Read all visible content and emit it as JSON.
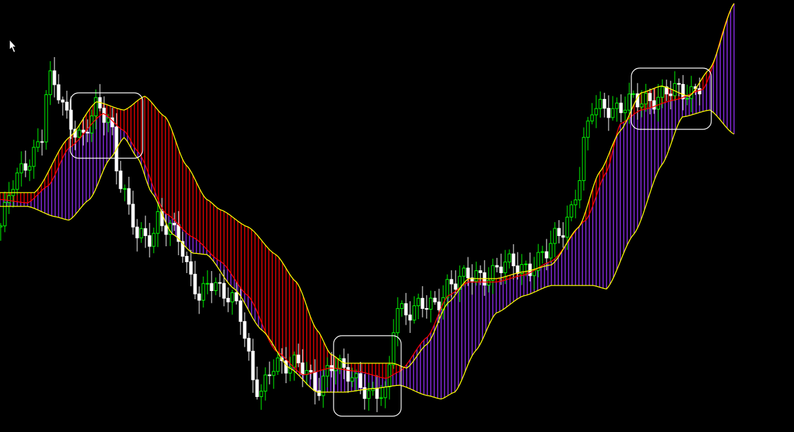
{
  "chart_data": {
    "type": "candlestick",
    "title": "",
    "xlabel": "",
    "ylabel": "",
    "xlim": [
      0,
      230
    ],
    "ylim": [
      0,
      62.8
    ],
    "grid": false,
    "legend": "none",
    "colors": {
      "background": "#000000",
      "bull_candle": "#00ff00",
      "bear_candle": "#ffffff",
      "band_lines": "#ffff00",
      "mid_line": "#ff0000",
      "fill_upper": "#ff0000",
      "fill_lower": "#9b30ff",
      "highlight_boxes": "#ffffff"
    },
    "close": [
      [
        0,
        29.8
      ],
      [
        4,
        35.8
      ],
      [
        8,
        39.8
      ],
      [
        12,
        42.8
      ],
      [
        14,
        50.8
      ],
      [
        16,
        49.8
      ],
      [
        20,
        45.8
      ],
      [
        24,
        42.8
      ],
      [
        28,
        46.8
      ],
      [
        32,
        45.8
      ],
      [
        34,
        38.8
      ],
      [
        36,
        34.8
      ],
      [
        38,
        30.8
      ],
      [
        40,
        27.8
      ],
      [
        44,
        28.8
      ],
      [
        46,
        31.8
      ],
      [
        48,
        29.8
      ],
      [
        52,
        27.8
      ],
      [
        54,
        23.8
      ],
      [
        56,
        22.8
      ],
      [
        58,
        19.8
      ],
      [
        60,
        21.8
      ],
      [
        64,
        19.8
      ],
      [
        68,
        19.8
      ],
      [
        70,
        17.8
      ],
      [
        72,
        10.8
      ],
      [
        74,
        5.8
      ],
      [
        76,
        4.8
      ],
      [
        78,
        8.8
      ],
      [
        80,
        10.8
      ],
      [
        84,
        9.8
      ],
      [
        88,
        8.8
      ],
      [
        92,
        6.8
      ],
      [
        96,
        9.8
      ],
      [
        100,
        8.3
      ],
      [
        104,
        7.8
      ],
      [
        108,
        5.3
      ],
      [
        112,
        4.8
      ],
      [
        115,
        18.8
      ],
      [
        118,
        17.8
      ],
      [
        122,
        17.8
      ],
      [
        126,
        18.3
      ],
      [
        130,
        21.8
      ],
      [
        134,
        21.8
      ],
      [
        138,
        22.8
      ],
      [
        142,
        23.3
      ],
      [
        146,
        23.8
      ],
      [
        150,
        24.3
      ],
      [
        154,
        24.3
      ],
      [
        158,
        25.3
      ],
      [
        162,
        28.8
      ],
      [
        166,
        32.8
      ],
      [
        168,
        36.8
      ],
      [
        170,
        42.8
      ],
      [
        172,
        46.8
      ],
      [
        176,
        47.8
      ],
      [
        180,
        46.8
      ],
      [
        184,
        47.8
      ],
      [
        188,
        48.8
      ],
      [
        192,
        48.8
      ],
      [
        196,
        49.3
      ],
      [
        200,
        49.8
      ],
      [
        204,
        50.8
      ]
    ],
    "upper_band": [
      [
        0,
        34.8
      ],
      [
        10,
        34.8
      ],
      [
        20,
        42.8
      ],
      [
        28,
        48.0
      ],
      [
        36,
        46.8
      ],
      [
        42,
        48.8
      ],
      [
        48,
        45.8
      ],
      [
        54,
        38.8
      ],
      [
        60,
        33.8
      ],
      [
        64,
        32.3
      ],
      [
        72,
        29.8
      ],
      [
        80,
        25.8
      ],
      [
        86,
        21.8
      ],
      [
        92,
        14.8
      ],
      [
        96,
        11.3
      ],
      [
        100,
        10.0
      ],
      [
        108,
        10.0
      ],
      [
        114,
        10.0
      ],
      [
        118,
        9.3
      ],
      [
        124,
        12.8
      ],
      [
        130,
        18.8
      ],
      [
        136,
        22.3
      ],
      [
        144,
        22.3
      ],
      [
        152,
        23.3
      ],
      [
        160,
        24.3
      ],
      [
        168,
        29.8
      ],
      [
        174,
        37.8
      ],
      [
        180,
        43.8
      ],
      [
        186,
        49.3
      ],
      [
        192,
        50.3
      ],
      [
        200,
        48.8
      ],
      [
        206,
        52.8
      ],
      [
        213,
        62.3
      ]
    ],
    "mid_line": [
      [
        0,
        33.8
      ],
      [
        8,
        33.3
      ],
      [
        14,
        35.8
      ],
      [
        20,
        41.3
      ],
      [
        30,
        46.3
      ],
      [
        36,
        43.8
      ],
      [
        40,
        40.8
      ],
      [
        48,
        31.8
      ],
      [
        56,
        28.3
      ],
      [
        64,
        24.8
      ],
      [
        72,
        19.8
      ],
      [
        80,
        11.8
      ],
      [
        88,
        8.3
      ],
      [
        96,
        9.3
      ],
      [
        104,
        8.8
      ],
      [
        112,
        7.8
      ],
      [
        116,
        8.8
      ],
      [
        124,
        13.8
      ],
      [
        130,
        19.8
      ],
      [
        136,
        21.8
      ],
      [
        144,
        21.8
      ],
      [
        152,
        22.8
      ],
      [
        160,
        24.8
      ],
      [
        170,
        30.8
      ],
      [
        176,
        37.8
      ],
      [
        180,
        44.8
      ],
      [
        186,
        46.8
      ],
      [
        196,
        48.3
      ],
      [
        204,
        49.8
      ],
      [
        213,
        62.3
      ]
    ],
    "lower_band": [
      [
        0,
        32.8
      ],
      [
        8,
        32.8
      ],
      [
        16,
        31.3
      ],
      [
        20,
        30.8
      ],
      [
        26,
        33.8
      ],
      [
        32,
        39.8
      ],
      [
        36,
        42.8
      ],
      [
        40,
        39.8
      ],
      [
        44,
        34.8
      ],
      [
        50,
        28.8
      ],
      [
        56,
        26.0
      ],
      [
        60,
        25.8
      ],
      [
        68,
        20.8
      ],
      [
        76,
        14.8
      ],
      [
        84,
        9.3
      ],
      [
        92,
        5.8
      ],
      [
        100,
        5.8
      ],
      [
        108,
        6.3
      ],
      [
        116,
        6.8
      ],
      [
        124,
        5.3
      ],
      [
        128,
        4.8
      ],
      [
        132,
        5.8
      ],
      [
        138,
        11.8
      ],
      [
        144,
        17.3
      ],
      [
        152,
        19.8
      ],
      [
        160,
        21.3
      ],
      [
        172,
        21.3
      ],
      [
        176,
        20.8
      ],
      [
        184,
        28.8
      ],
      [
        192,
        38.8
      ],
      [
        198,
        45.8
      ],
      [
        206,
        46.8
      ],
      [
        213,
        43.3
      ]
    ],
    "highlight_regions": [
      {
        "bars": [
          20.4,
          41.4
        ],
        "values": [
          39.8,
          49.3
        ]
      },
      {
        "bars": [
          96.8,
          116.4
        ],
        "values": [
          2.3,
          14.0
        ]
      },
      {
        "bars": [
          183.2,
          206.4
        ],
        "values": [
          44.0,
          52.9
        ]
      }
    ]
  }
}
